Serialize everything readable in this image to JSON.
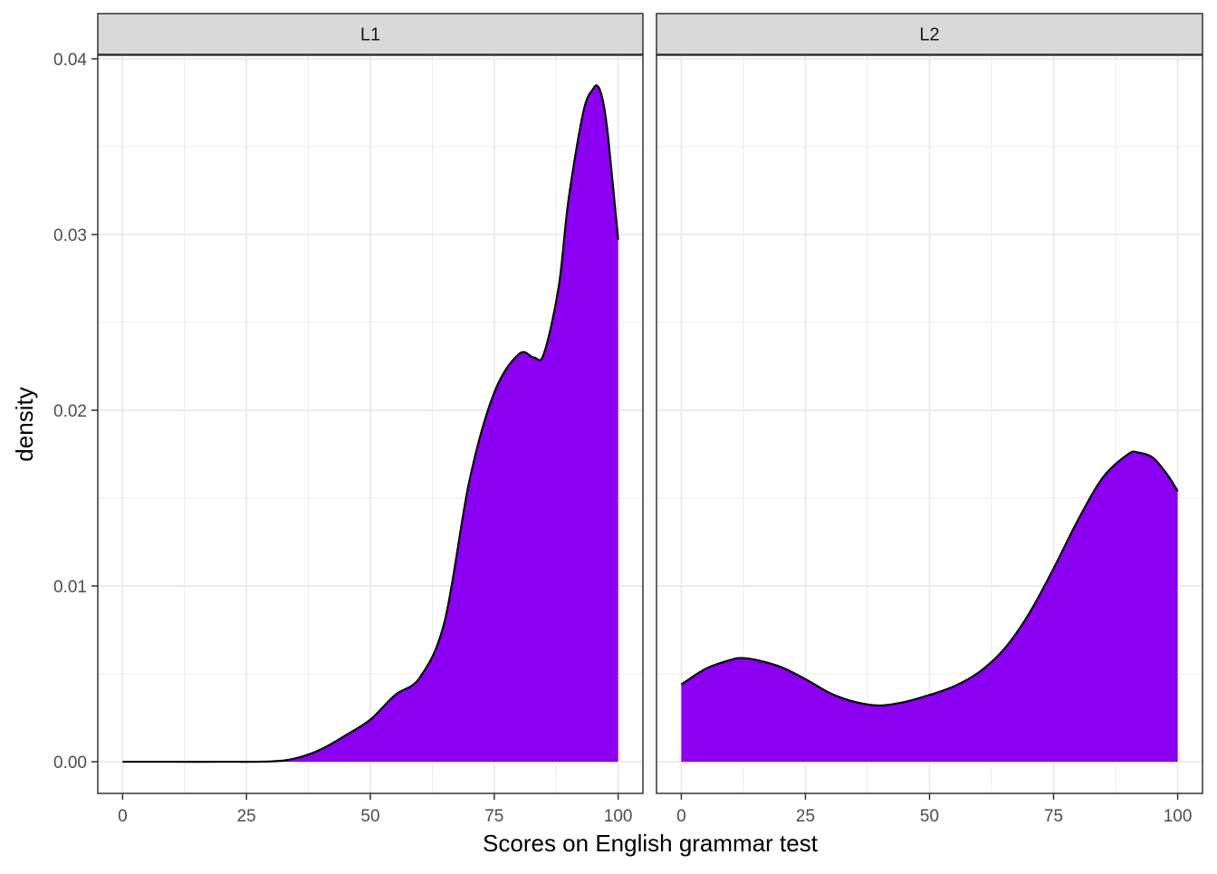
{
  "chart_data": {
    "type": "area",
    "title": "",
    "xlabel": "Scores on English grammar test",
    "ylabel": "density",
    "xlim": [
      -5,
      105
    ],
    "ylim": [
      -0.0018,
      0.0402
    ],
    "x_ticks": [
      0,
      25,
      50,
      75,
      100
    ],
    "x_tick_labels": [
      "0",
      "25",
      "50",
      "75",
      "100"
    ],
    "y_ticks": [
      0,
      0.01,
      0.02,
      0.03,
      0.04
    ],
    "y_tick_labels": [
      "0.00",
      "0.01",
      "0.02",
      "0.03",
      "0.04"
    ],
    "grid": true,
    "legend": "none",
    "fill_color": "#8B00F0",
    "line_color": "#000000",
    "panels": [
      {
        "label": "L1",
        "x": [
          0,
          10,
          20,
          30,
          35,
          40,
          45,
          50,
          55,
          60,
          65,
          70,
          75,
          80,
          83,
          85,
          88,
          90,
          93,
          95,
          96,
          97,
          98,
          100
        ],
        "y": [
          0.0,
          0.0,
          0.0,
          2e-05,
          0.0002,
          0.0007,
          0.0015,
          0.0024,
          0.0038,
          0.0048,
          0.008,
          0.016,
          0.021,
          0.0232,
          0.023,
          0.0232,
          0.027,
          0.032,
          0.037,
          0.0383,
          0.0384,
          0.0375,
          0.0355,
          0.0297
        ]
      },
      {
        "label": "L2",
        "x": [
          0,
          5,
          10,
          12,
          15,
          20,
          25,
          30,
          35,
          40,
          45,
          50,
          55,
          60,
          65,
          70,
          75,
          80,
          85,
          90,
          92,
          95,
          98,
          100
        ],
        "y": [
          0.0044,
          0.0053,
          0.0058,
          0.0059,
          0.0058,
          0.0054,
          0.0047,
          0.0039,
          0.0034,
          0.0032,
          0.0034,
          0.0038,
          0.0043,
          0.0051,
          0.0064,
          0.0084,
          0.011,
          0.0138,
          0.0162,
          0.0175,
          0.0176,
          0.0173,
          0.0163,
          0.0154
        ]
      }
    ]
  }
}
